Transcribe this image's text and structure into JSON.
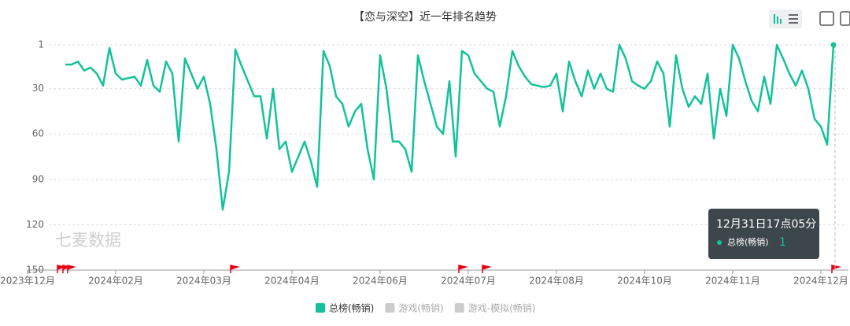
{
  "chart_data": {
    "type": "line",
    "title": "【恋与深空】近一年排名趋势",
    "watermark": "七麦数据",
    "categories": [
      "2023年12月",
      null,
      null,
      null,
      null,
      null,
      null,
      null,
      null,
      null,
      null,
      null,
      null,
      null,
      "2024年02月",
      null,
      null,
      null,
      null,
      null,
      null,
      null,
      null,
      null,
      null,
      null,
      null,
      null,
      "2024年03月",
      null,
      null,
      null,
      null,
      null,
      null,
      null,
      null,
      null,
      null,
      null,
      null,
      null,
      "2024年04月",
      null,
      null,
      null,
      null,
      null,
      null,
      null,
      null,
      null,
      null,
      null,
      null,
      null,
      "2024年06月",
      null,
      null,
      null,
      null,
      null,
      null,
      null,
      null,
      null,
      null,
      null,
      null,
      null,
      "2024年07月",
      null,
      null,
      null,
      null,
      null,
      null,
      null,
      null,
      null,
      null,
      null,
      null,
      null,
      "2024年08月",
      null,
      null,
      null,
      null,
      null,
      null,
      null,
      null,
      null,
      null,
      null,
      null,
      null,
      "2024年10月",
      null,
      null,
      null,
      null,
      null,
      null,
      null,
      null,
      null,
      null,
      null,
      null,
      null,
      "2024年11月",
      null,
      null,
      null,
      null,
      null,
      null,
      null,
      null,
      null,
      null,
      null,
      null,
      null,
      "2024年12月",
      null,
      null
    ],
    "series": [
      {
        "name": "总榜(畅销)",
        "color": "#13c29a",
        "values": [
          null,
          null,
          null,
          null,
          null,
          null,
          14,
          14,
          12,
          18,
          16,
          20,
          28,
          3,
          20,
          24,
          23,
          22,
          28,
          11,
          28,
          32,
          12,
          20,
          65,
          10,
          20,
          30,
          22,
          40,
          70,
          110,
          85,
          4,
          15,
          25,
          35,
          35,
          63,
          30,
          70,
          65,
          85,
          75,
          65,
          78,
          95,
          5,
          15,
          35,
          40,
          55,
          45,
          40,
          70,
          90,
          8,
          30,
          65,
          65,
          70,
          85,
          8,
          25,
          40,
          55,
          60,
          25,
          75,
          5,
          8,
          20,
          25,
          30,
          32,
          55,
          35,
          5,
          15,
          22,
          27,
          28,
          29,
          28,
          20,
          45,
          12,
          25,
          35,
          18,
          30,
          20,
          30,
          32,
          1,
          10,
          25,
          28,
          30,
          25,
          12,
          20,
          55,
          8,
          30,
          42,
          35,
          40,
          20,
          63,
          30,
          48,
          1,
          10,
          25,
          38,
          45,
          22,
          40,
          1,
          10,
          20,
          28,
          18,
          30,
          50,
          55,
          67,
          1
        ]
      },
      {
        "name": "游戏(畅销)",
        "color": "#cccccc",
        "hidden": true
      },
      {
        "name": "游戏-模拟(畅销)",
        "color": "#cccccc",
        "hidden": true
      }
    ],
    "ylim": [
      1,
      150
    ],
    "yticks": [
      1,
      30,
      60,
      90,
      120,
      150
    ],
    "y_inverted": true,
    "grid": true,
    "tooltip": {
      "title": "12月31日17点05分",
      "series_name": "总榜(畅销)",
      "value": 1
    }
  }
}
